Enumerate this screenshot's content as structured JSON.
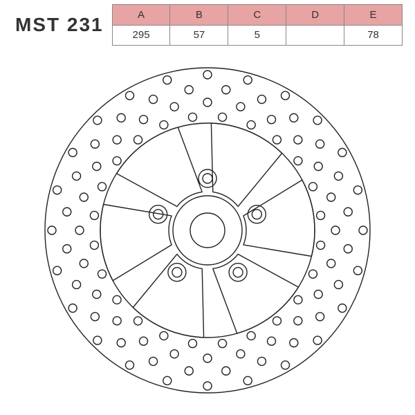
{
  "title": "MST 231",
  "columns": [
    "A",
    "B",
    "C",
    "D",
    "E"
  ],
  "values": [
    "295",
    "57",
    "5",
    "",
    "78"
  ],
  "style": {
    "header_bg": "#e8a3a3",
    "border_color": "#888888",
    "title_fontsize": 28,
    "cell_fontsize": 15,
    "text_color": "#333333"
  },
  "disc": {
    "type": "technical-drawing",
    "stroke": "#222222",
    "stroke_width": 1.4,
    "outer_radius": 235,
    "rotor_inner_radius": 155,
    "hub_outer_radius": 50,
    "hub_inner_radius": 25,
    "bolt_circle_radius": 75,
    "bolt_outer_r": 13,
    "bolt_inner_r": 7,
    "n_spokes": 6,
    "n_bolts": 5,
    "hole_rings": [
      {
        "radius": 225,
        "count": 24,
        "hole_r": 6,
        "phase_deg": 0
      },
      {
        "radius": 205,
        "count": 24,
        "hole_r": 6,
        "phase_deg": 7.5
      },
      {
        "radius": 185,
        "count": 24,
        "hole_r": 6,
        "phase_deg": 0
      },
      {
        "radius": 165,
        "count": 24,
        "hole_r": 6,
        "phase_deg": 7.5
      }
    ]
  }
}
